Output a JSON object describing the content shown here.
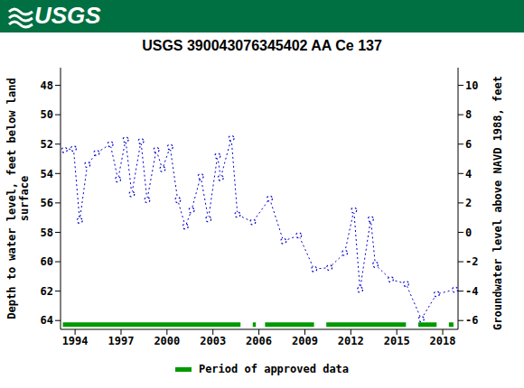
{
  "chart_data": {
    "type": "line",
    "logo": "USGS",
    "title": "USGS 390043076345402 AA Ce 137",
    "ylabel": [
      "Depth to water level, feet below land",
      "surface"
    ],
    "y2label": "Groundwater level above NAVD 1988, feet",
    "x": [
      1993.3,
      1993.9,
      1994.3,
      1994.8,
      1995.4,
      1996.3,
      1996.8,
      1997.3,
      1997.7,
      1998.3,
      1998.7,
      1999.3,
      1999.7,
      2000.2,
      2000.7,
      2001.2,
      2001.6,
      2002.2,
      2002.7,
      2003.3,
      2003.5,
      2004.2,
      2004.6,
      2005.6,
      2006.7,
      2007.6,
      2008.6,
      2009.6,
      2010.6,
      2011.6,
      2012.2,
      2012.6,
      2013.3,
      2013.6,
      2014.6,
      2015.6,
      2016.6,
      2017.6,
      2018.8
    ],
    "values": [
      52.4,
      52.3,
      57.2,
      53.4,
      52.6,
      52.0,
      54.4,
      51.7,
      55.4,
      51.8,
      55.8,
      52.4,
      53.7,
      52.2,
      55.8,
      57.6,
      56.5,
      54.2,
      57.1,
      52.8,
      54.3,
      51.6,
      56.8,
      57.3,
      55.7,
      58.6,
      58.2,
      60.5,
      60.4,
      59.4,
      56.5,
      61.9,
      57.1,
      60.2,
      61.2,
      61.5,
      63.9,
      62.2,
      61.9
    ],
    "color": "#0000cc",
    "marker": "circle",
    "line_style": "dotted",
    "xlim": [
      1993.05,
      2019.0
    ],
    "xticks": [
      1994,
      1997,
      2000,
      2003,
      2006,
      2009,
      2012,
      2015,
      2018
    ],
    "ylim": [
      46.8,
      64.6
    ],
    "yticks": [
      48,
      50,
      52,
      54,
      56,
      58,
      60,
      62,
      64
    ],
    "y2lim": [
      -6.6,
      11.2
    ],
    "y2ticks": [
      -6,
      -4,
      -2,
      0,
      2,
      4,
      6,
      8,
      10
    ],
    "grid": false,
    "legend": "bottom",
    "approved_data": {
      "name": "Period of approved data",
      "color": "#009900",
      "periods": [
        [
          1993.2,
          2004.8
        ],
        [
          2005.6,
          2005.8
        ],
        [
          2006.4,
          2009.6
        ],
        [
          2010.4,
          2015.6
        ],
        [
          2016.4,
          2017.6
        ],
        [
          2018.4,
          2018.7
        ]
      ]
    }
  }
}
